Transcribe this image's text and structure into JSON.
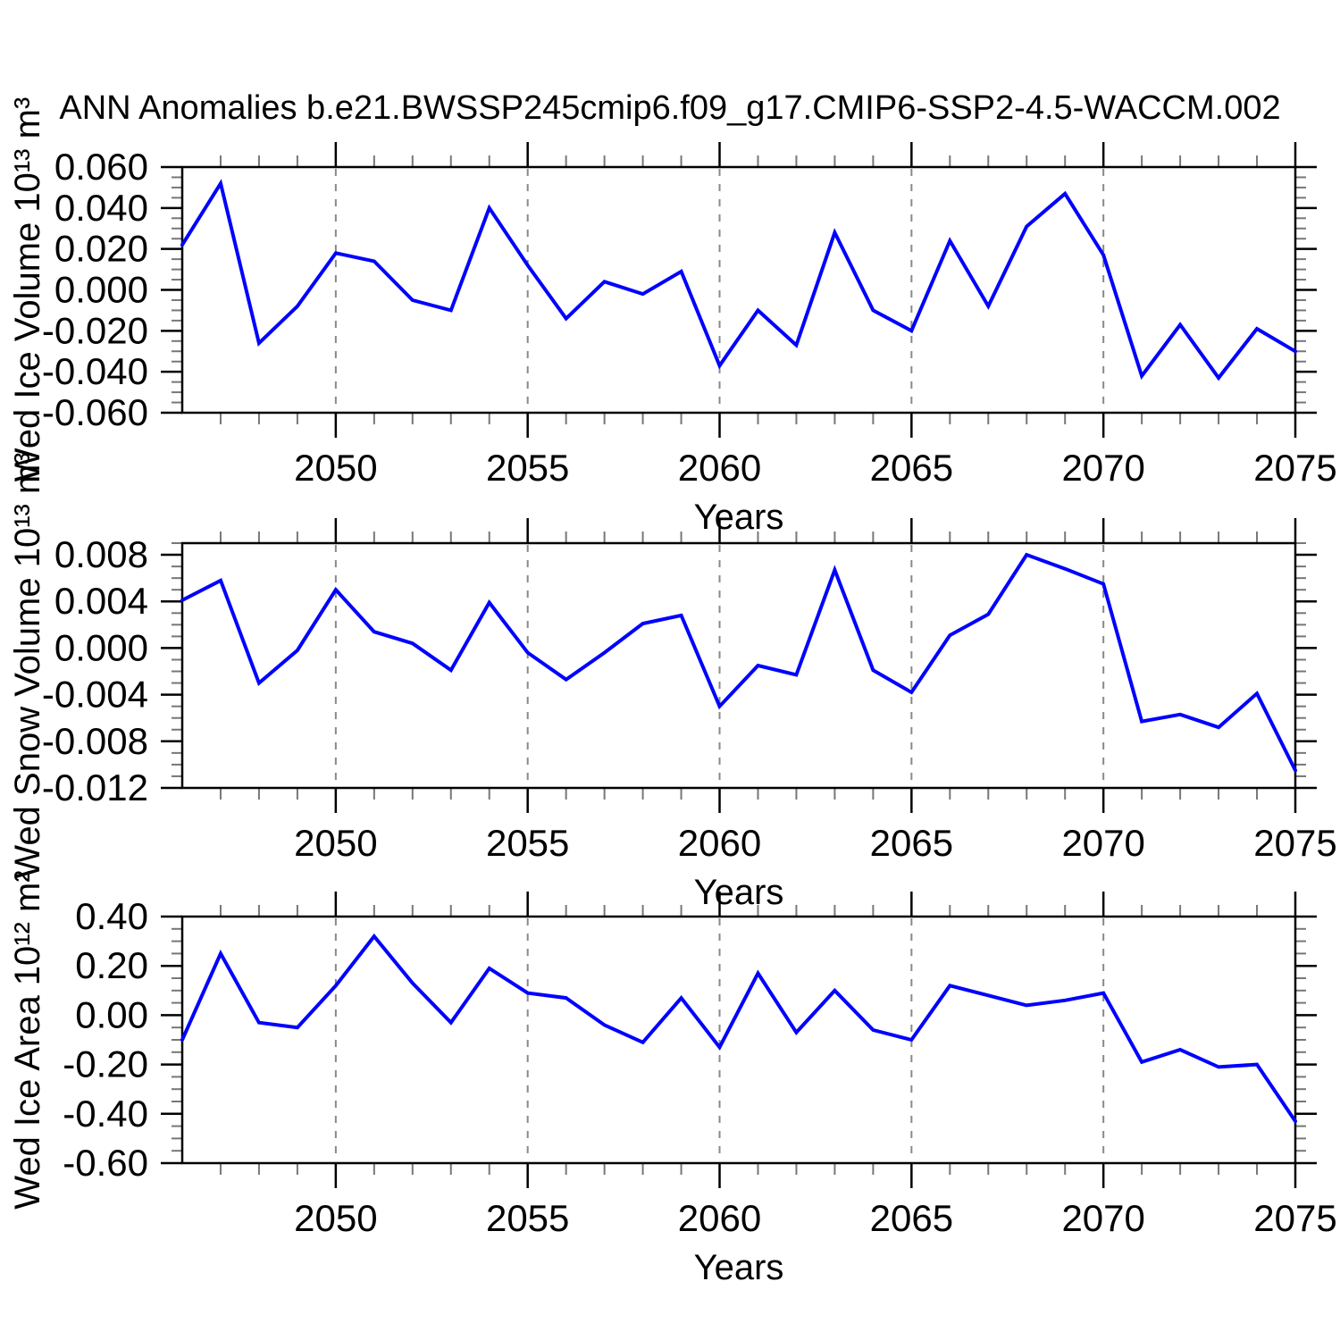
{
  "title": "ANN Anomalies b.e21.BWSSP245cmip6.f09_g17.CMIP6-SSP2-4.5-WACCM.002",
  "line_color": "#0000ff",
  "gridline_color": "#898989",
  "frame_color": "#000000",
  "minor_tick_color": "#777777",
  "chart_data": [
    {
      "type": "line",
      "id": "wed-ice-volume",
      "ylabel": "Wed Ice Volume 10¹³ m³",
      "xlabel": "Years",
      "xlim": [
        2046,
        2075
      ],
      "ylim": [
        -0.06,
        0.06
      ],
      "grid": "vertical-dashed",
      "legend": "none",
      "x_major_ticks": [
        {
          "value": 2050,
          "label": "2050"
        },
        {
          "value": 2055,
          "label": "2055"
        },
        {
          "value": 2060,
          "label": "2060"
        },
        {
          "value": 2065,
          "label": "2065"
        },
        {
          "value": 2070,
          "label": "2070"
        },
        {
          "value": 2075,
          "label": "2075"
        }
      ],
      "x_minor_step": 1,
      "y_ticks": [
        {
          "value": 0.06,
          "label": "0.060"
        },
        {
          "value": 0.04,
          "label": "0.040"
        },
        {
          "value": 0.02,
          "label": "0.020"
        },
        {
          "value": 0.0,
          "label": "0.000"
        },
        {
          "value": -0.02,
          "label": "-0.020"
        },
        {
          "value": -0.04,
          "label": "-0.040"
        },
        {
          "value": -0.06,
          "label": "-0.060"
        }
      ],
      "y_minor_step": 0.005,
      "x": [
        2046,
        2047,
        2048,
        2049,
        2050,
        2051,
        2052,
        2053,
        2054,
        2055,
        2056,
        2057,
        2058,
        2059,
        2060,
        2061,
        2062,
        2063,
        2064,
        2065,
        2066,
        2067,
        2068,
        2069,
        2070,
        2071,
        2072,
        2073,
        2074,
        2075
      ],
      "values": [
        0.022,
        0.052,
        -0.026,
        -0.008,
        0.018,
        0.014,
        -0.005,
        -0.01,
        0.04,
        0.012,
        -0.014,
        0.004,
        -0.002,
        0.009,
        -0.037,
        -0.01,
        -0.027,
        0.028,
        -0.01,
        -0.02,
        0.024,
        -0.008,
        0.031,
        0.047,
        0.017,
        -0.042,
        -0.017,
        -0.043,
        -0.019,
        -0.03
      ]
    },
    {
      "type": "line",
      "id": "wed-snow-volume",
      "ylabel": "Wed Snow Volume 10¹³ m³",
      "xlabel": "Years",
      "xlim": [
        2046,
        2075
      ],
      "ylim": [
        -0.012,
        0.009
      ],
      "grid": "vertical-dashed",
      "legend": "none",
      "x_major_ticks": [
        {
          "value": 2050,
          "label": "2050"
        },
        {
          "value": 2055,
          "label": "2055"
        },
        {
          "value": 2060,
          "label": "2060"
        },
        {
          "value": 2065,
          "label": "2065"
        },
        {
          "value": 2070,
          "label": "2070"
        },
        {
          "value": 2075,
          "label": "2075"
        }
      ],
      "x_minor_step": 1,
      "y_ticks": [
        {
          "value": 0.008,
          "label": "0.008"
        },
        {
          "value": 0.004,
          "label": "0.004"
        },
        {
          "value": 0.0,
          "label": "0.000"
        },
        {
          "value": -0.004,
          "label": "-0.004"
        },
        {
          "value": -0.008,
          "label": "-0.008"
        },
        {
          "value": -0.012,
          "label": "-0.012"
        }
      ],
      "y_minor_step": 0.001,
      "x": [
        2046,
        2047,
        2048,
        2049,
        2050,
        2051,
        2052,
        2053,
        2054,
        2055,
        2056,
        2057,
        2058,
        2059,
        2060,
        2061,
        2062,
        2063,
        2064,
        2065,
        2066,
        2067,
        2068,
        2069,
        2070,
        2071,
        2072,
        2073,
        2074,
        2075
      ],
      "values": [
        0.0041,
        0.0058,
        -0.003,
        -0.0002,
        0.005,
        0.0014,
        0.0004,
        -0.0019,
        0.0039,
        -0.0004,
        -0.0027,
        -0.0004,
        0.0021,
        0.0028,
        -0.005,
        -0.0015,
        -0.0023,
        0.0067,
        -0.0019,
        -0.0038,
        0.0011,
        0.0029,
        0.008,
        0.0068,
        0.0055,
        -0.0063,
        -0.0057,
        -0.0068,
        -0.0039,
        -0.0105
      ]
    },
    {
      "type": "line",
      "id": "wed-ice-area",
      "ylabel": "Wed Ice Area 10¹² m²",
      "xlabel": "Years",
      "xlim": [
        2046,
        2075
      ],
      "ylim": [
        -0.6,
        0.4
      ],
      "grid": "vertical-dashed",
      "legend": "none",
      "x_major_ticks": [
        {
          "value": 2050,
          "label": "2050"
        },
        {
          "value": 2055,
          "label": "2055"
        },
        {
          "value": 2060,
          "label": "2060"
        },
        {
          "value": 2065,
          "label": "2065"
        },
        {
          "value": 2070,
          "label": "2070"
        },
        {
          "value": 2075,
          "label": "2075"
        }
      ],
      "x_minor_step": 1,
      "y_ticks": [
        {
          "value": 0.4,
          "label": "0.40"
        },
        {
          "value": 0.2,
          "label": "0.20"
        },
        {
          "value": 0.0,
          "label": "0.00"
        },
        {
          "value": -0.2,
          "label": "-0.20"
        },
        {
          "value": -0.4,
          "label": "-0.40"
        },
        {
          "value": -0.6,
          "label": "-0.60"
        }
      ],
      "y_minor_step": 0.05,
      "x": [
        2046,
        2047,
        2048,
        2049,
        2050,
        2051,
        2052,
        2053,
        2054,
        2055,
        2056,
        2057,
        2058,
        2059,
        2060,
        2061,
        2062,
        2063,
        2064,
        2065,
        2066,
        2067,
        2068,
        2069,
        2070,
        2071,
        2072,
        2073,
        2074,
        2075
      ],
      "values": [
        -0.1,
        0.25,
        -0.03,
        -0.05,
        0.12,
        0.32,
        0.13,
        -0.03,
        0.19,
        0.09,
        0.07,
        -0.04,
        -0.11,
        0.07,
        -0.13,
        0.17,
        -0.07,
        0.1,
        -0.06,
        -0.1,
        0.12,
        0.08,
        0.04,
        0.06,
        0.09,
        -0.19,
        -0.14,
        -0.21,
        -0.2,
        -0.43
      ]
    }
  ]
}
